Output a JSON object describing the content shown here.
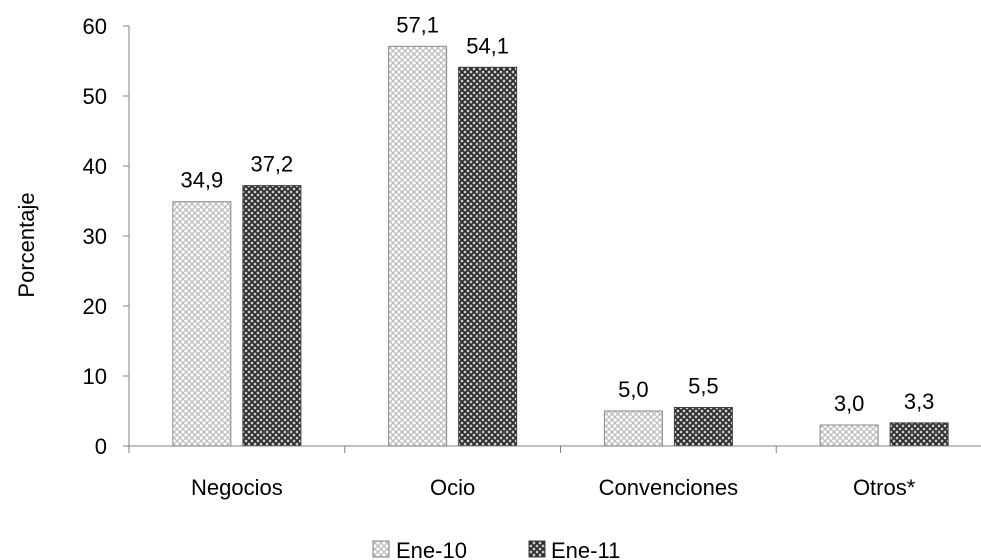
{
  "chart_data": {
    "type": "bar",
    "title": "",
    "xlabel": "",
    "ylabel": "Porcentaje",
    "ylim": [
      0,
      60
    ],
    "yticks": [
      0,
      10,
      20,
      30,
      40,
      50,
      60
    ],
    "grid": false,
    "legend": "bottom",
    "categories": [
      "Negocios",
      "Ocio",
      "Convenciones",
      "Otros*"
    ],
    "series": [
      {
        "name": "Ene-10",
        "values": [
          34.9,
          57.1,
          5.0,
          3.0
        ],
        "labels": [
          "34,9",
          "57,1",
          "5,0",
          "3,0"
        ],
        "pattern": "light-crosshatch",
        "color": "#d9d9d9"
      },
      {
        "name": "Ene-11",
        "values": [
          37.2,
          54.1,
          5.5,
          3.3
        ],
        "labels": [
          "37,2",
          "54,1",
          "5,5",
          "3,3"
        ],
        "pattern": "dark-crosshatch",
        "color": "#3a3a3a"
      }
    ]
  }
}
